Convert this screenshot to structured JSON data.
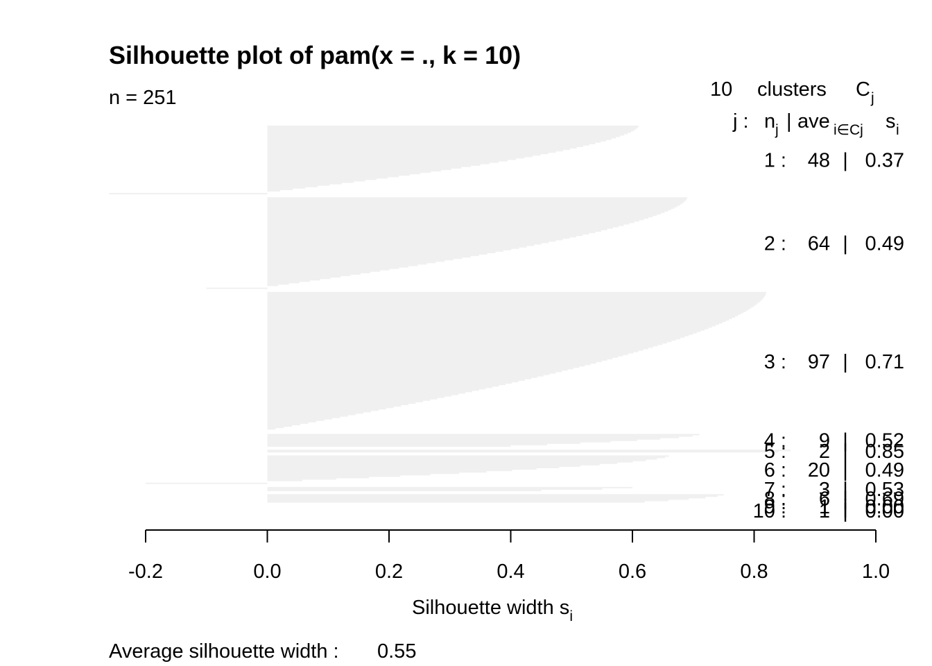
{
  "chart_data": {
    "type": "bar",
    "orientation": "horizontal",
    "title": "Silhouette plot of pam(x = ., k = 10)",
    "subtitle": "n = 251",
    "legend_header": {
      "count": "10",
      "label": "clusters",
      "symbol": "C",
      "symbol_sub": "j"
    },
    "column_header": {
      "j": "j :",
      "n": "n",
      "n_sub": "j",
      "sep": "|",
      "ave": "ave",
      "ave_sub": "i∈Cj",
      "s": "s",
      "s_sub": "i"
    },
    "xlabel": "Silhouette width s",
    "xlabel_sub": "i",
    "xlim": [
      -0.2,
      1.0
    ],
    "x_ticks": [
      "-0.2",
      "0.0",
      "0.2",
      "0.4",
      "0.6",
      "0.8",
      "1.0"
    ],
    "bar_color": "#f0f0f0",
    "footer_label": "Average silhouette width :",
    "footer_value": "0.55",
    "clusters": [
      {
        "j": "1",
        "n": "48",
        "ave": "0.37",
        "max": 0.61,
        "min": -0.26,
        "neg": 1
      },
      {
        "j": "2",
        "n": "64",
        "ave": "0.49",
        "max": 0.69,
        "min": -0.1,
        "neg": 1
      },
      {
        "j": "3",
        "n": "97",
        "ave": "0.71",
        "max": 0.82,
        "min": 0.0,
        "neg": 0
      },
      {
        "j": "4",
        "n": "9",
        "ave": "0.52",
        "max": 0.71,
        "min": 0.4,
        "neg": 0
      },
      {
        "j": "5",
        "n": "2",
        "ave": "0.85",
        "max": 0.86,
        "min": 0.84,
        "neg": 0
      },
      {
        "j": "6",
        "n": "20",
        "ave": "0.49",
        "max": 0.66,
        "min": -0.2,
        "neg": 1
      },
      {
        "j": "7",
        "n": "3",
        "ave": "0.53",
        "max": 0.6,
        "min": 0.45,
        "neg": 0
      },
      {
        "j": "8",
        "n": "6",
        "ave": "0.69",
        "max": 0.75,
        "min": 0.62,
        "neg": 0
      },
      {
        "j": "9",
        "n": "1",
        "ave": "0.00",
        "max": 0.0,
        "min": 0.0,
        "neg": 0
      },
      {
        "j": "10",
        "n": "1",
        "ave": "0.00",
        "max": 0.0,
        "min": 0.0,
        "neg": 0
      }
    ]
  }
}
